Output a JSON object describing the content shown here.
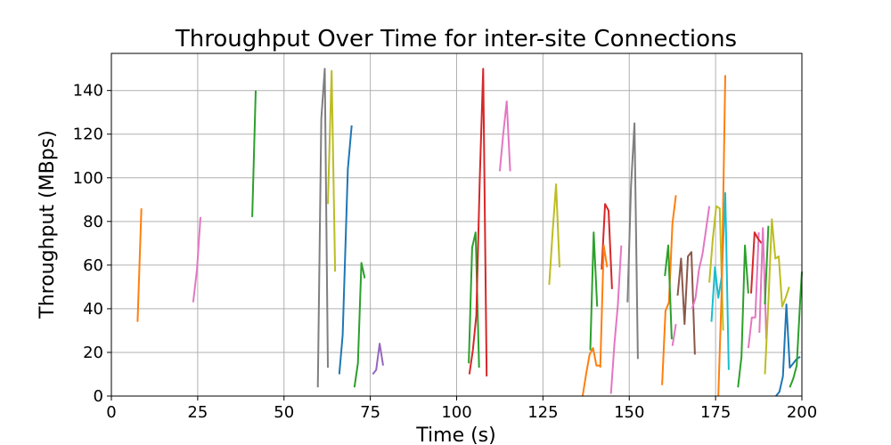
{
  "chart_data": {
    "type": "line",
    "title": "Throughput Over Time for inter-site Connections",
    "xlabel": "Time (s)",
    "ylabel": "Throughput (MBps)",
    "xlim": [
      0,
      200
    ],
    "ylim": [
      0,
      157
    ],
    "xticks": [
      0,
      25,
      50,
      75,
      100,
      125,
      150,
      175,
      200
    ],
    "yticks": [
      0,
      20,
      40,
      60,
      80,
      100,
      120,
      140
    ],
    "grid": true,
    "legend": "none",
    "colors": [
      "#1f77b4",
      "#ff7f0e",
      "#2ca02c",
      "#d62728",
      "#9467bd",
      "#8c564b",
      "#e377c2",
      "#7f7f7f",
      "#bcbd22",
      "#17becf"
    ],
    "series": [
      {
        "color_index": 1,
        "x": [
          7.6,
          8.7
        ],
        "y": [
          34,
          86
        ]
      },
      {
        "color_index": 6,
        "x": [
          23.7,
          24.8,
          25.8
        ],
        "y": [
          43,
          58,
          82
        ]
      },
      {
        "color_index": 2,
        "x": [
          40.8,
          41.8
        ],
        "y": [
          82,
          140
        ]
      },
      {
        "color_index": 7,
        "x": [
          59.8,
          60.8,
          61.8,
          62.7
        ],
        "y": [
          4,
          127,
          150,
          13
        ]
      },
      {
        "color_index": 8,
        "x": [
          62.7,
          63.8,
          64.8
        ],
        "y": [
          88,
          149,
          57
        ]
      },
      {
        "color_index": 0,
        "x": [
          66,
          67,
          68.5,
          69.6
        ],
        "y": [
          10,
          28,
          104,
          124
        ]
      },
      {
        "color_index": 2,
        "x": [
          70.4,
          71.4,
          72.4,
          73.4
        ],
        "y": [
          4,
          15,
          61,
          54
        ]
      },
      {
        "color_index": 4,
        "x": [
          75.7,
          76.7,
          77.7,
          78.7
        ],
        "y": [
          10,
          12,
          24,
          14
        ]
      },
      {
        "color_index": 2,
        "x": [
          103.5,
          104.5,
          105.5,
          106.5
        ],
        "y": [
          15,
          68,
          75,
          13
        ]
      },
      {
        "color_index": 3,
        "x": [
          103.7,
          104.7,
          105.7,
          106.7,
          107.7,
          108.7
        ],
        "y": [
          10,
          21,
          37,
          100,
          150,
          9
        ]
      },
      {
        "color_index": 6,
        "x": [
          112.5,
          113.5,
          114.5,
          115.5
        ],
        "y": [
          103,
          120,
          135,
          103
        ]
      },
      {
        "color_index": 8,
        "x": [
          126.8,
          127.8,
          128.8,
          129.8
        ],
        "y": [
          51,
          75,
          97,
          59
        ]
      },
      {
        "color_index": 1,
        "x": [
          136.5,
          137.5,
          138.5,
          139.5,
          140.5,
          141.5
        ],
        "y": [
          0,
          10,
          19,
          22,
          14,
          14
        ]
      },
      {
        "color_index": 2,
        "x": [
          138.7,
          139.7,
          140.7
        ],
        "y": [
          21,
          75,
          41
        ]
      },
      {
        "color_index": 3,
        "x": [
          142,
          143,
          144,
          145
        ],
        "y": [
          58,
          88,
          85,
          49
        ]
      },
      {
        "color_index": 1,
        "x": [
          141.6,
          142.6,
          143.6
        ],
        "y": [
          13,
          69,
          59
        ]
      },
      {
        "color_index": 6,
        "x": [
          144.7,
          145.7,
          146.7,
          147.7
        ],
        "y": [
          1,
          24,
          42,
          69
        ]
      },
      {
        "color_index": 7,
        "x": [
          149.5,
          150.5,
          151.5,
          152.5
        ],
        "y": [
          43,
          96,
          125,
          17
        ]
      },
      {
        "color_index": 1,
        "x": [
          159.5,
          160.5,
          161.5,
          162.5,
          163.5
        ],
        "y": [
          5,
          39,
          43,
          79,
          92
        ]
      },
      {
        "color_index": 2,
        "x": [
          160.3,
          161.3,
          162.3
        ],
        "y": [
          55,
          69,
          26
        ]
      },
      {
        "color_index": 6,
        "x": [
          162.5,
          163.5
        ],
        "y": [
          23,
          33
        ]
      },
      {
        "color_index": 5,
        "x": [
          164,
          165,
          166,
          167,
          168,
          169
        ],
        "y": [
          46,
          63,
          33,
          64,
          66,
          19
        ]
      },
      {
        "color_index": 6,
        "x": [
          168.2,
          169.2,
          170.2,
          171.2,
          172.2,
          173.2
        ],
        "y": [
          40,
          45,
          58,
          65,
          76,
          87
        ]
      },
      {
        "color_index": 8,
        "x": [
          173.2,
          174.2,
          175.2,
          176.2,
          177.2
        ],
        "y": [
          52,
          72,
          87,
          86,
          30
        ]
      },
      {
        "color_index": 9,
        "x": [
          173.8,
          174.8,
          175.8,
          176.8,
          177.8,
          178.8
        ],
        "y": [
          34,
          59,
          45,
          55,
          93,
          12
        ]
      },
      {
        "color_index": 1,
        "x": [
          175.8,
          176.8,
          177.8
        ],
        "y": [
          0,
          50,
          147
        ]
      },
      {
        "color_index": 2,
        "x": [
          181.5,
          182.5,
          183.5,
          184.5
        ],
        "y": [
          4,
          18,
          69,
          47
        ]
      },
      {
        "color_index": 6,
        "x": [
          184.5,
          185.5,
          186.5,
          187.5
        ],
        "y": [
          22,
          36,
          36,
          75
        ]
      },
      {
        "color_index": 3,
        "x": [
          185.3,
          186.3,
          187.3,
          188.3
        ],
        "y": [
          47,
          75,
          72,
          70
        ]
      },
      {
        "color_index": 6,
        "x": [
          187.7,
          188.7,
          189.7
        ],
        "y": [
          29,
          77,
          26
        ]
      },
      {
        "color_index": 2,
        "x": [
          189.3,
          190.3
        ],
        "y": [
          42,
          78
        ]
      },
      {
        "color_index": 8,
        "x": [
          189.3,
          190.3,
          191.3,
          192.3,
          193.3,
          194.3,
          195.3,
          196.3
        ],
        "y": [
          10,
          43,
          81,
          63,
          64,
          41,
          45,
          50
        ]
      },
      {
        "color_index": 0,
        "x": [
          192.5,
          193.5,
          194.5,
          195.5,
          196.5,
          197.5,
          198.5,
          199.5
        ],
        "y": [
          0,
          2,
          9,
          42,
          13,
          15,
          17,
          18
        ]
      },
      {
        "color_index": 2,
        "x": [
          196.5,
          197.5,
          198.5,
          199.5,
          200
        ],
        "y": [
          4,
          8,
          14,
          44,
          57
        ]
      }
    ]
  }
}
